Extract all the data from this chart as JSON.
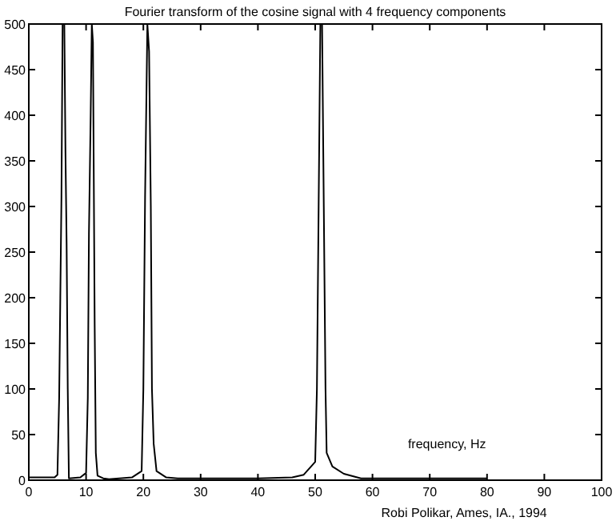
{
  "chart_data": {
    "type": "line",
    "title": "Fourier transform of the cosine signal with 4 frequency components",
    "xlabel": "frequency, Hz",
    "annotations": [
      "Robi Polikar, Ames, IA., 1994"
    ],
    "x": [
      0,
      4.5,
      5,
      5.3,
      5.5,
      5.7,
      5.9,
      6.2,
      6.4,
      6.6,
      6.8,
      7,
      9,
      10,
      10.3,
      10.5,
      10.8,
      11,
      11.2,
      11.5,
      11.7,
      12,
      13,
      14,
      18,
      19.7,
      20,
      20.3,
      20.7,
      21,
      21.3,
      21.5,
      21.8,
      22.3,
      24,
      26,
      30,
      40,
      46,
      48,
      50,
      50.3,
      50.6,
      50.9,
      51.2,
      51.5,
      51.8,
      52,
      53,
      55,
      58,
      80
    ],
    "series": [
      {
        "color": "#000000",
        "values": [
          3,
          3,
          6,
          90,
          200,
          310,
          500,
          500,
          360,
          260,
          100,
          2,
          3,
          8,
          90,
          270,
          400,
          500,
          480,
          170,
          30,
          5,
          2,
          1,
          3,
          10,
          100,
          310,
          500,
          470,
          300,
          100,
          40,
          10,
          3,
          2,
          2,
          2,
          3,
          6,
          20,
          100,
          300,
          500,
          500,
          300,
          100,
          30,
          15,
          7,
          2,
          2
        ]
      }
    ],
    "xlim": [
      0,
      100
    ],
    "xticks": [
      0,
      10,
      20,
      30,
      40,
      50,
      60,
      70,
      80,
      90,
      100
    ],
    "ylim": [
      0,
      500
    ],
    "yticks": [
      0,
      50,
      100,
      150,
      200,
      250,
      300,
      350,
      400,
      450,
      500
    ],
    "grid": false
  }
}
